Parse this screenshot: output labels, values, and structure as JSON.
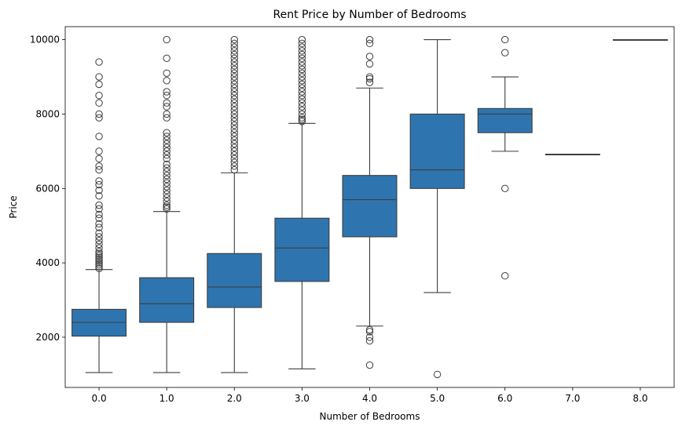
{
  "chart_data": {
    "type": "boxplot",
    "title": "Rent Price by Number of Bedrooms",
    "xlabel": "Number of Bedrooms",
    "ylabel": "Price",
    "ylim": [
      650,
      10350
    ],
    "yticks": [
      2000,
      4000,
      6000,
      8000,
      10000
    ],
    "grid": false,
    "box_color": "#2e75b0",
    "categories": [
      "0.0",
      "1.0",
      "2.0",
      "3.0",
      "4.0",
      "5.0",
      "6.0",
      "7.0",
      "8.0"
    ],
    "boxes": [
      {
        "category": "0.0",
        "whisker_low": 1050,
        "q1": 2030,
        "median": 2400,
        "q3": 2750,
        "whisker_high": 3820,
        "outliers": [
          3850,
          3900,
          3950,
          4000,
          4050,
          4100,
          4150,
          4200,
          4250,
          4300,
          4400,
          4500,
          4600,
          4700,
          4800,
          4950,
          5050,
          5200,
          5300,
          5450,
          5550,
          5800,
          5950,
          6100,
          6200,
          6500,
          6600,
          6800,
          7000,
          7400,
          7900,
          8000,
          8300,
          8500,
          8800,
          9000,
          9400
        ]
      },
      {
        "category": "1.0",
        "whisker_low": 1050,
        "q1": 2400,
        "median": 2900,
        "q3": 3600,
        "whisker_high": 5380,
        "outliers": [
          5450,
          5500,
          5550,
          5650,
          5750,
          5850,
          5950,
          6050,
          6150,
          6250,
          6350,
          6450,
          6550,
          6650,
          6800,
          6900,
          7000,
          7100,
          7200,
          7300,
          7400,
          7500,
          7900,
          8000,
          8200,
          8300,
          8500,
          8600,
          8900,
          9100,
          9500,
          10000
        ]
      },
      {
        "category": "2.0",
        "whisker_low": 1050,
        "q1": 2800,
        "median": 3350,
        "q3": 4250,
        "whisker_high": 6420,
        "outliers": [
          6500,
          6600,
          6700,
          6800,
          6900,
          7000,
          7100,
          7200,
          7300,
          7400,
          7500,
          7600,
          7700,
          7800,
          7900,
          8000,
          8100,
          8200,
          8300,
          8400,
          8500,
          8600,
          8700,
          8800,
          8900,
          9000,
          9100,
          9200,
          9300,
          9400,
          9500,
          9600,
          9700,
          9800,
          9900,
          10000
        ]
      },
      {
        "category": "3.0",
        "whisker_low": 1150,
        "q1": 3500,
        "median": 4400,
        "q3": 5200,
        "whisker_high": 7750,
        "outliers": [
          7800,
          7850,
          7900,
          8000,
          8100,
          8200,
          8300,
          8400,
          8500,
          8600,
          8700,
          8800,
          8900,
          9000,
          9100,
          9200,
          9300,
          9400,
          9500,
          9600,
          9700,
          9800,
          9900,
          10000
        ]
      },
      {
        "category": "4.0",
        "whisker_low": 2300,
        "q1": 4700,
        "median": 5700,
        "q3": 6350,
        "whisker_high": 8700,
        "outliers": [
          1250,
          1900,
          2000,
          2150,
          2200,
          8850,
          8950,
          9000,
          9350,
          9550,
          9900,
          10000
        ]
      },
      {
        "category": "5.0",
        "whisker_low": 3200,
        "q1": 6000,
        "median": 6500,
        "q3": 8000,
        "whisker_high": 10000,
        "outliers": [
          1000
        ]
      },
      {
        "category": "6.0",
        "whisker_low": 7000,
        "q1": 7500,
        "median": 8000,
        "q3": 8150,
        "whisker_high": 9000,
        "outliers": [
          3650,
          6000,
          9650,
          10000
        ]
      },
      {
        "category": "7.0",
        "whisker_low": 6920,
        "q1": 6920,
        "median": 6920,
        "q3": 6920,
        "whisker_high": 6920,
        "outliers": []
      },
      {
        "category": "8.0",
        "whisker_low": 10000,
        "q1": 10000,
        "median": 10000,
        "q3": 10000,
        "whisker_high": 10000,
        "outliers": []
      }
    ]
  }
}
